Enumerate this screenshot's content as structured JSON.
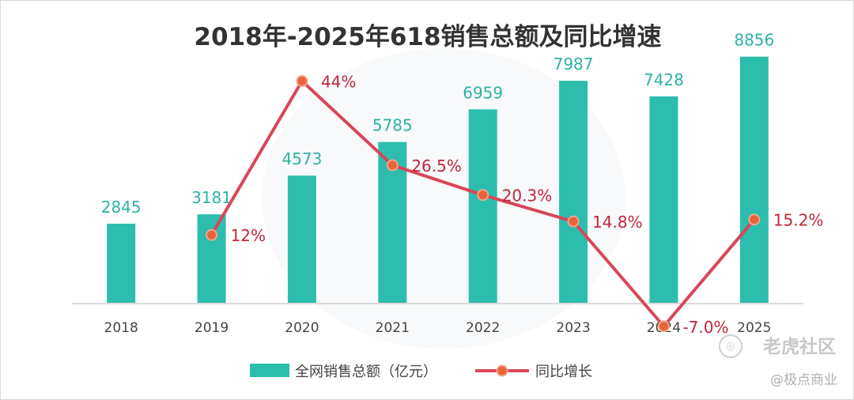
{
  "chart_data": {
    "type": "bar",
    "title": "2018年-2025年618销售总额及同比增速",
    "categories": [
      "2018",
      "2019",
      "2020",
      "2021",
      "2022",
      "2023",
      "2024",
      "2025"
    ],
    "series": [
      {
        "name": "全网销售总额（亿元）",
        "type": "bar",
        "values": [
          2845,
          3181,
          4573,
          5785,
          6959,
          7987,
          7428,
          8856
        ],
        "labels": [
          "2845",
          "3181",
          "4573",
          "5785",
          "6959",
          "7987",
          "7428",
          "8856"
        ],
        "color": "#2dbdad"
      },
      {
        "name": "同比增长",
        "type": "line",
        "x": [
          "2019",
          "2020",
          "2021",
          "2022",
          "2023",
          "2024",
          "2025"
        ],
        "values": [
          12,
          44,
          26.5,
          20.3,
          14.8,
          -7.0,
          15.2
        ],
        "labels": [
          "12%",
          "44%",
          "26.5%",
          "20.3%",
          "14.8%",
          "-7.0%",
          "15.2%"
        ],
        "color": "#d9465a",
        "marker_color": "#e8643a"
      }
    ],
    "ylim_bar": [
      0,
      9500
    ],
    "ylim_line": [
      -10,
      50
    ],
    "legend_position": "bottom",
    "grid": false
  },
  "watermark": {
    "brand": "老虎社区",
    "icon": "tiger-logo-icon",
    "credit": "@极点商业"
  },
  "colors": {
    "bar": "#2dbdad",
    "line": "#d9465a",
    "marker": "#e8643a",
    "bar_label": "#2db3a3",
    "line_label": "#c0263a",
    "axis_text": "#444444"
  }
}
